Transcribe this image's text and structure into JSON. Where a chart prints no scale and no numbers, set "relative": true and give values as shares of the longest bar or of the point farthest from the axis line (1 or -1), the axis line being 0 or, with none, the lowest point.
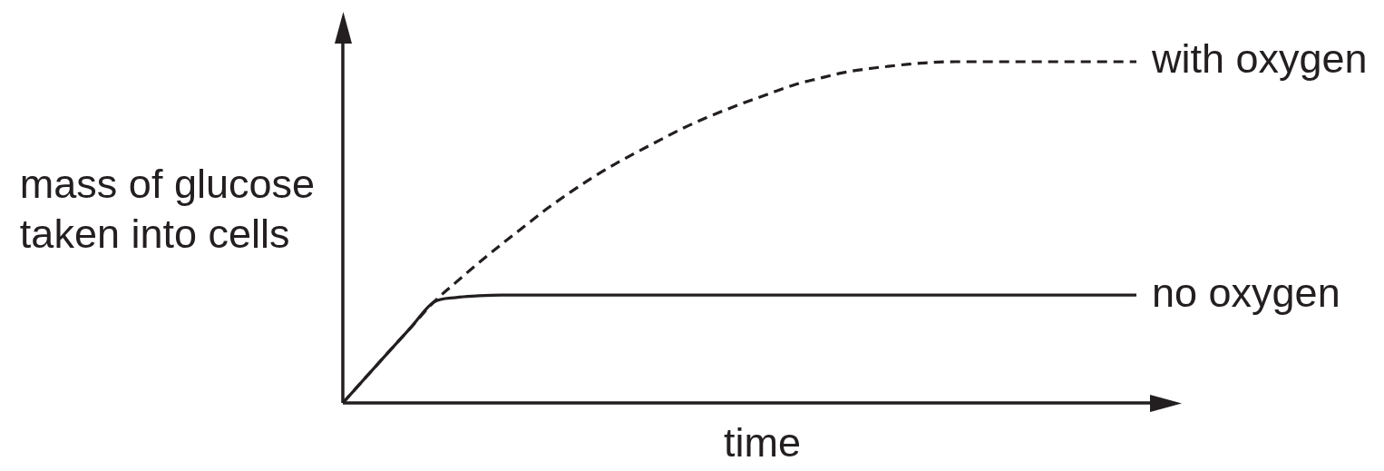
{
  "chart_data": {
    "type": "line",
    "relative": true,
    "ylabel": "mass of glucose\ntaken into cells",
    "xlabel": "time",
    "categories": [
      null,
      null,
      null,
      null,
      null,
      null,
      null,
      null,
      null,
      null,
      null,
      null,
      null,
      null,
      null,
      null,
      null,
      null,
      null,
      null,
      null,
      null,
      null,
      null,
      null,
      null,
      null,
      null,
      null,
      null,
      null,
      null,
      null,
      null,
      null,
      null
    ],
    "series": [
      {
        "name": "with oxygen",
        "color": "#231f20",
        "line_style": "dashed",
        "values": [
          0,
          0.074,
          0.148,
          0.221,
          0.295,
          0.354,
          0.411,
          0.465,
          0.517,
          0.569,
          0.616,
          0.66,
          0.7,
          0.736,
          0.771,
          0.805,
          0.835,
          0.862,
          0.887,
          0.911,
          0.934,
          0.951,
          0.967,
          0.978,
          0.986,
          0.993,
          0.998,
          1,
          1,
          1,
          1,
          1,
          1,
          1,
          1,
          1
        ]
      },
      {
        "name": "no oxygen",
        "color": "#231f20",
        "line_style": "solid",
        "values": [
          0,
          0.074,
          0.148,
          0.221,
          0.295,
          0.309,
          0.314,
          0.316,
          0.316,
          0.316,
          0.316,
          0.316,
          0.316,
          0.316,
          0.316,
          0.316,
          0.316,
          0.316,
          0.316,
          0.316,
          0.316,
          0.316,
          0.316,
          0.316,
          0.316,
          0.316,
          0.316,
          0.316,
          0.316,
          0.316,
          0.316,
          0.316,
          0.316,
          0.316,
          0.316,
          0.316
        ]
      }
    ],
    "marker": "none",
    "grid": false,
    "legend": false,
    "tick_labels": false
  }
}
